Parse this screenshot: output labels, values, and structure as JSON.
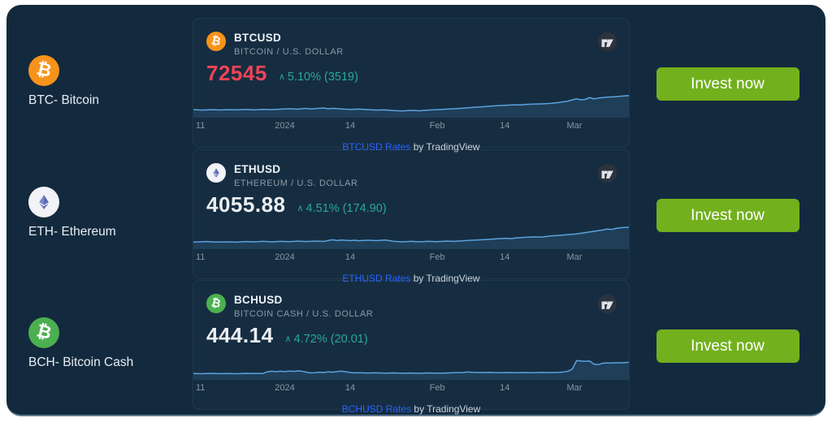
{
  "colors": {
    "panel_bg": "#132a3e",
    "line": "#5aa2de",
    "fill": "rgba(90,162,222,0.15)",
    "change_green": "#2aa79b",
    "invest_green": "#72b01d",
    "link_blue": "#2962ff"
  },
  "coins": [
    {
      "sidebar_label": "BTC- Bitcoin",
      "icon_glyph": "₿",
      "icon_bg": "#f7931a",
      "symbol": "BTCUSD",
      "pair_name": "BITCOIN / U.S. DOLLAR",
      "price": "72545",
      "price_color": "#ef4456",
      "change_arrow": "∧",
      "change_text": "5.10% (3519)",
      "axis_labels": [
        "11",
        "2024",
        "14",
        "Feb",
        "14",
        "Mar"
      ],
      "copyright_link": "BTCUSD Rates",
      "copyright_rest": " by TradingView",
      "invest_label": "Invest now",
      "sparkline": [
        [
          0,
          21
        ],
        [
          2,
          21.5
        ],
        [
          4,
          21
        ],
        [
          6,
          21.4
        ],
        [
          8,
          21
        ],
        [
          10,
          21.3
        ],
        [
          12,
          20.8
        ],
        [
          14,
          21.2
        ],
        [
          16,
          20.7
        ],
        [
          18,
          21
        ],
        [
          20,
          20.5
        ],
        [
          22,
          20
        ],
        [
          24,
          20.5
        ],
        [
          26,
          19.5
        ],
        [
          27,
          20.3
        ],
        [
          28,
          19.8
        ],
        [
          30,
          19.2
        ],
        [
          31,
          20
        ],
        [
          32,
          19.5
        ],
        [
          34,
          20.2
        ],
        [
          36,
          20.8
        ],
        [
          38,
          20.3
        ],
        [
          40,
          21
        ],
        [
          42,
          21.5
        ],
        [
          44,
          21.2
        ],
        [
          46,
          22
        ],
        [
          48,
          22.5
        ],
        [
          50,
          21.8
        ],
        [
          52,
          22.3
        ],
        [
          54,
          21.5
        ],
        [
          56,
          21
        ],
        [
          58,
          20.5
        ],
        [
          60,
          20
        ],
        [
          62,
          19.3
        ],
        [
          64,
          18.5
        ],
        [
          66,
          18
        ],
        [
          68,
          17.2
        ],
        [
          70,
          16.5
        ],
        [
          72,
          16
        ],
        [
          74,
          15.5
        ],
        [
          75,
          15.8
        ],
        [
          76,
          15.2
        ],
        [
          78,
          14.8
        ],
        [
          80,
          14.5
        ],
        [
          82,
          14
        ],
        [
          84,
          13
        ],
        [
          86,
          11.5
        ],
        [
          87,
          10
        ],
        [
          88,
          9
        ],
        [
          89,
          10
        ],
        [
          90,
          9.5
        ],
        [
          91,
          7.5
        ],
        [
          92,
          9
        ],
        [
          93,
          8
        ],
        [
          95,
          7
        ],
        [
          97,
          6.5
        ],
        [
          98,
          6
        ],
        [
          100,
          5.2
        ]
      ]
    },
    {
      "sidebar_label": "ETH- Ethereum",
      "icon_glyph": "",
      "icon_bg": "#f2f3f7",
      "symbol": "ETHUSD",
      "pair_name": "ETHEREUM / U.S. DOLLAR",
      "price": "4055.88",
      "price_color": "#eceff2",
      "change_arrow": "∧",
      "change_text": "4.51% (174.90)",
      "axis_labels": [
        "11",
        "2024",
        "14",
        "Feb",
        "14",
        "Mar"
      ],
      "copyright_link": "ETHUSD Rates",
      "copyright_rest": " by TradingView",
      "invest_label": "Invest now",
      "sparkline": [
        [
          0,
          22
        ],
        [
          3,
          21.5
        ],
        [
          5,
          22
        ],
        [
          8,
          21.8
        ],
        [
          10,
          22.2
        ],
        [
          12,
          21.5
        ],
        [
          14,
          21.8
        ],
        [
          16,
          21.3
        ],
        [
          18,
          21.8
        ],
        [
          20,
          21.2
        ],
        [
          22,
          21.6
        ],
        [
          24,
          21
        ],
        [
          26,
          21.5
        ],
        [
          28,
          21
        ],
        [
          30,
          21.4
        ],
        [
          31,
          20.2
        ],
        [
          32,
          19.5
        ],
        [
          33,
          20.3
        ],
        [
          34,
          19.8
        ],
        [
          36,
          20.5
        ],
        [
          37,
          20
        ],
        [
          38,
          20.6
        ],
        [
          40,
          20
        ],
        [
          42,
          20.4
        ],
        [
          44,
          19.8
        ],
        [
          45,
          20.5
        ],
        [
          46,
          21.3
        ],
        [
          48,
          21.8
        ],
        [
          50,
          21.3
        ],
        [
          52,
          21.7
        ],
        [
          54,
          21.2
        ],
        [
          56,
          21.6
        ],
        [
          58,
          21
        ],
        [
          60,
          21.3
        ],
        [
          62,
          20.6
        ],
        [
          64,
          20
        ],
        [
          66,
          19.5
        ],
        [
          68,
          19
        ],
        [
          70,
          18.3
        ],
        [
          72,
          17.8
        ],
        [
          73,
          18.2
        ],
        [
          74,
          17.5
        ],
        [
          76,
          16.8
        ],
        [
          78,
          16.2
        ],
        [
          80,
          16.5
        ],
        [
          81,
          15.8
        ],
        [
          82,
          15.2
        ],
        [
          84,
          14.5
        ],
        [
          86,
          13.8
        ],
        [
          88,
          13
        ],
        [
          90,
          11.5
        ],
        [
          92,
          10
        ],
        [
          94,
          8.5
        ],
        [
          95,
          7.5
        ],
        [
          96,
          8
        ],
        [
          97,
          6.8
        ],
        [
          98,
          6
        ],
        [
          100,
          5.5
        ]
      ]
    },
    {
      "sidebar_label": "BCH- Bitcoin Cash",
      "icon_glyph": "₿",
      "icon_bg": "#4caf50",
      "symbol": "BCHUSD",
      "pair_name": "BITCOIN CASH / U.S. DOLLAR",
      "price": "444.14",
      "price_color": "#eceff2",
      "change_arrow": "∧",
      "change_text": "4.72% (20.01)",
      "axis_labels": [
        "11",
        "2024",
        "14",
        "Feb",
        "14",
        "Mar"
      ],
      "copyright_link": "BCHUSD Rates",
      "copyright_rest": " by TradingView",
      "invest_label": "Invest now",
      "sparkline": [
        [
          0,
          23
        ],
        [
          2,
          23.2
        ],
        [
          4,
          22.8
        ],
        [
          6,
          23.1
        ],
        [
          8,
          22.9
        ],
        [
          10,
          23.2
        ],
        [
          12,
          22.8
        ],
        [
          14,
          23
        ],
        [
          16,
          22.9
        ],
        [
          17,
          21
        ],
        [
          18,
          20.5
        ],
        [
          19,
          20.8
        ],
        [
          20,
          20.3
        ],
        [
          21,
          20.8
        ],
        [
          22,
          20.2
        ],
        [
          23,
          20.6
        ],
        [
          24,
          20
        ],
        [
          25,
          20.5
        ],
        [
          26,
          21.5
        ],
        [
          27,
          22.3
        ],
        [
          28,
          22
        ],
        [
          29,
          21.5
        ],
        [
          30,
          21.8
        ],
        [
          31,
          21
        ],
        [
          32,
          21.5
        ],
        [
          33,
          20.8
        ],
        [
          34,
          20.2
        ],
        [
          35,
          21
        ],
        [
          36,
          21.8
        ],
        [
          37,
          22.3
        ],
        [
          38,
          22
        ],
        [
          40,
          22.4
        ],
        [
          42,
          22.2
        ],
        [
          44,
          22.5
        ],
        [
          46,
          22.3
        ],
        [
          48,
          22.6
        ],
        [
          50,
          22.4
        ],
        [
          52,
          22.7
        ],
        [
          54,
          22.3
        ],
        [
          56,
          22.6
        ],
        [
          58,
          22.4
        ],
        [
          60,
          22.1
        ],
        [
          62,
          21.8
        ],
        [
          63,
          21.3
        ],
        [
          64,
          21.6
        ],
        [
          66,
          21.9
        ],
        [
          68,
          21.7
        ],
        [
          70,
          22
        ],
        [
          72,
          21.8
        ],
        [
          74,
          22
        ],
        [
          76,
          21.8
        ],
        [
          78,
          22
        ],
        [
          80,
          21.7
        ],
        [
          82,
          21.9
        ],
        [
          84,
          21.6
        ],
        [
          85,
          21.2
        ],
        [
          86,
          20.5
        ],
        [
          87,
          18
        ],
        [
          88,
          8.5
        ],
        [
          89,
          9
        ],
        [
          90,
          9.3
        ],
        [
          91,
          9
        ],
        [
          92,
          12.5
        ],
        [
          93,
          13
        ],
        [
          94,
          11.5
        ],
        [
          95,
          11
        ],
        [
          96,
          11.3
        ],
        [
          97,
          10.8
        ],
        [
          98,
          11
        ],
        [
          99,
          10.7
        ],
        [
          100,
          10.5
        ]
      ]
    }
  ]
}
